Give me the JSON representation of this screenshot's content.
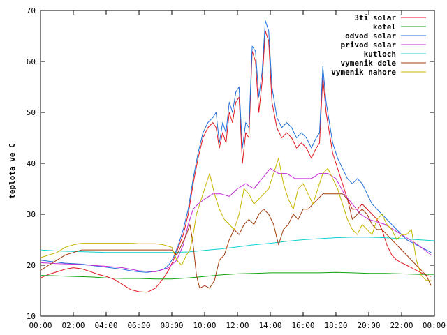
{
  "chart_data": {
    "type": "line",
    "ylabel": "teplota ve C",
    "x_ticks": [
      "00:00",
      "02:00",
      "04:00",
      "06:00",
      "08:00",
      "10:00",
      "12:00",
      "14:00",
      "16:00",
      "18:00",
      "20:00",
      "22:00",
      "00:00"
    ],
    "y_ticks": [
      10,
      20,
      30,
      40,
      50,
      60,
      70
    ],
    "xlim": [
      0,
      24
    ],
    "ylim": [
      10,
      70
    ],
    "legend_position": "top-right",
    "grid": false,
    "series": [
      {
        "name": "3ti solar",
        "color": "#e0151e",
        "x": [
          0,
          0.5,
          1,
          1.5,
          2,
          2.5,
          3,
          3.5,
          4,
          4.5,
          5,
          5.5,
          6,
          6.5,
          7,
          7.5,
          7.8,
          8.1,
          8.4,
          8.7,
          9,
          9.3,
          9.6,
          9.9,
          10.2,
          10.5,
          10.7,
          10.9,
          11.1,
          11.3,
          11.5,
          11.7,
          11.9,
          12.1,
          12.3,
          12.5,
          12.7,
          12.9,
          13.1,
          13.3,
          13.5,
          13.7,
          13.9,
          14.1,
          14.4,
          14.7,
          15,
          15.3,
          15.6,
          15.9,
          16.2,
          16.5,
          16.8,
          17.0,
          17.2,
          17.4,
          17.6,
          17.8,
          18.1,
          18.4,
          18.7,
          19,
          19.3,
          19.6,
          19.9,
          20.2,
          20.5,
          20.8,
          21.1,
          21.4,
          21.7,
          22,
          22.3,
          22.6,
          22.9,
          23.2,
          23.5,
          23.8
        ],
        "values": [
          17.5,
          18.2,
          18.7,
          19.2,
          19.5,
          19.3,
          18.8,
          18.2,
          17.8,
          17.2,
          16.2,
          15.2,
          14.8,
          14.7,
          15.5,
          17.5,
          19,
          21,
          23.5,
          26,
          30,
          36,
          41,
          45,
          47,
          48,
          47,
          43,
          46,
          44,
          50,
          48,
          52,
          53,
          40,
          46,
          45,
          62,
          60,
          50,
          56,
          66,
          64,
          52,
          47,
          45,
          46,
          45,
          43,
          44,
          43,
          41,
          43,
          44,
          57,
          50,
          46,
          42,
          39,
          36,
          33,
          31,
          31,
          32,
          31,
          30,
          29,
          27,
          24,
          22,
          21,
          20.5,
          20,
          19.5,
          19,
          18.5,
          18,
          17.8
        ]
      },
      {
        "name": "kotel",
        "color": "#0fa30f",
        "x": [
          0,
          1,
          2,
          3,
          4,
          5,
          6,
          7,
          8,
          9,
          10,
          11,
          12,
          13,
          14,
          15,
          16,
          17,
          18,
          19,
          20,
          21,
          22,
          23,
          24
        ],
        "values": [
          18,
          17.9,
          17.8,
          17.7,
          17.5,
          17.4,
          17.4,
          17.3,
          17.3,
          17.5,
          17.8,
          18.1,
          18.3,
          18.4,
          18.5,
          18.5,
          18.5,
          18.5,
          18.6,
          18.5,
          18.4,
          18.4,
          18.3,
          18.2,
          18.2
        ]
      },
      {
        "name": "odvod solar",
        "color": "#1f6fd8",
        "x": [
          0,
          0.5,
          1,
          1.5,
          2,
          2.5,
          3,
          3.5,
          4,
          4.5,
          5,
          5.5,
          6,
          6.5,
          7,
          7.5,
          7.8,
          8.1,
          8.4,
          8.7,
          9,
          9.3,
          9.6,
          9.9,
          10.2,
          10.5,
          10.7,
          10.9,
          11.1,
          11.3,
          11.5,
          11.7,
          11.9,
          12.1,
          12.3,
          12.5,
          12.7,
          12.9,
          13.1,
          13.3,
          13.5,
          13.7,
          13.9,
          14.1,
          14.4,
          14.7,
          15,
          15.3,
          15.6,
          15.9,
          16.2,
          16.5,
          16.8,
          17.0,
          17.2,
          17.4,
          17.6,
          17.8,
          18.1,
          18.4,
          18.7,
          19,
          19.3,
          19.6,
          19.9,
          20.2,
          20.5,
          20.8,
          21.1,
          21.4,
          21.7,
          22,
          22.3,
          22.6,
          22.9,
          23.2,
          23.5,
          23.8
        ],
        "values": [
          21,
          20.8,
          20.6,
          20.4,
          20.3,
          20.2,
          20,
          19.8,
          19.6,
          19.4,
          19.2,
          18.9,
          18.7,
          18.6,
          18.8,
          19.2,
          20,
          21.5,
          24,
          27,
          31,
          37,
          42,
          46,
          48,
          49,
          50,
          44,
          48,
          46,
          52,
          50,
          54,
          55,
          43,
          48,
          47,
          63,
          62,
          53,
          58,
          68,
          66,
          55,
          49,
          47,
          48,
          47,
          45,
          46,
          45,
          43,
          45,
          46,
          59,
          52,
          48,
          44,
          41,
          39,
          37,
          36,
          37,
          36,
          34,
          32,
          31,
          30,
          29,
          28,
          27,
          26,
          25,
          24.5,
          24,
          23.5,
          23,
          22.5
        ]
      },
      {
        "name": "privod solar",
        "color": "#c22bd4",
        "x": [
          0,
          1,
          2,
          3,
          4,
          5,
          6,
          7,
          7.8,
          8.3,
          8.7,
          9,
          9.3,
          9.6,
          10,
          10.5,
          11,
          11.5,
          12,
          12.5,
          13,
          13.5,
          14,
          14.5,
          15,
          15.5,
          16,
          16.5,
          17,
          17.5,
          18,
          18.5,
          19,
          19.5,
          20,
          20.5,
          21,
          21.5,
          22,
          22.5,
          23,
          23.8
        ],
        "values": [
          20.5,
          20.3,
          20.2,
          20,
          19.8,
          19.5,
          18.9,
          18.7,
          19.5,
          21,
          24,
          28,
          31,
          32,
          33,
          34,
          34,
          33.5,
          35,
          36,
          35,
          37,
          39,
          38,
          38,
          37,
          37,
          37,
          38,
          38,
          37,
          34,
          32,
          30,
          29,
          28.5,
          28,
          27,
          26,
          25,
          24,
          22
        ]
      },
      {
        "name": "kutloch",
        "color": "#10cfcf",
        "x": [
          0,
          1,
          2,
          3,
          4,
          5,
          6,
          7,
          8,
          9,
          10,
          11,
          12,
          13,
          14,
          15,
          16,
          17,
          18,
          19,
          20,
          21,
          22,
          23,
          24
        ],
        "values": [
          23,
          22.8,
          22.7,
          22.6,
          22.5,
          22.5,
          22.5,
          22.5,
          22.5,
          22.6,
          22.9,
          23.2,
          23.6,
          24,
          24.3,
          24.7,
          25,
          25.2,
          25.4,
          25.5,
          25.5,
          25.4,
          25.2,
          25,
          24.8
        ]
      },
      {
        "name": "vymenik dole",
        "color": "#a03a0a",
        "x": [
          0,
          0.5,
          1,
          1.5,
          2,
          2.5,
          3,
          3.5,
          4,
          4.5,
          5,
          5.5,
          6,
          6.5,
          7,
          7.5,
          8,
          8.3,
          8.6,
          8.9,
          9.1,
          9.3,
          9.5,
          9.7,
          10,
          10.3,
          10.6,
          10.9,
          11.2,
          11.5,
          11.8,
          12.1,
          12.4,
          12.7,
          13,
          13.3,
          13.6,
          13.9,
          14.2,
          14.5,
          14.8,
          15.1,
          15.4,
          15.7,
          16,
          16.3,
          16.6,
          16.9,
          17.2,
          17.5,
          17.8,
          18.1,
          18.4,
          18.7,
          19,
          19.3,
          19.6,
          19.9,
          20.2,
          20.5,
          20.8,
          21.1,
          21.4,
          21.7,
          22,
          22.3,
          22.6,
          22.9,
          23.2,
          23.5,
          23.8
        ],
        "values": [
          19,
          20,
          21,
          22,
          22.5,
          23,
          23,
          23,
          23,
          23,
          23,
          23,
          23,
          23,
          23,
          23,
          23,
          22,
          24,
          26,
          28,
          24,
          18,
          15.5,
          16,
          15.5,
          17,
          21,
          22,
          25,
          27,
          26,
          28,
          29,
          28,
          30,
          31,
          30,
          28,
          24,
          27,
          28,
          30,
          29,
          31,
          31,
          32,
          33,
          34,
          34,
          34,
          34,
          34,
          33,
          29,
          30,
          31,
          30,
          28,
          27,
          27,
          26,
          25,
          24,
          23,
          22,
          21,
          20,
          19,
          18,
          16
        ]
      },
      {
        "name": "vymenik nahore",
        "color": "#c8b400",
        "x": [
          0,
          0.5,
          1,
          1.5,
          2,
          2.5,
          3,
          3.5,
          4,
          4.5,
          5,
          5.5,
          6,
          6.5,
          7,
          7.5,
          8,
          8.3,
          8.6,
          8.9,
          9.1,
          9.3,
          9.5,
          9.7,
          10,
          10.3,
          10.6,
          10.9,
          11.2,
          11.5,
          11.8,
          12.1,
          12.4,
          12.7,
          13,
          13.3,
          13.6,
          13.9,
          14.2,
          14.5,
          14.8,
          15.1,
          15.4,
          15.7,
          16,
          16.3,
          16.6,
          16.9,
          17.2,
          17.5,
          17.8,
          18.1,
          18.4,
          18.7,
          19,
          19.3,
          19.6,
          19.9,
          20.2,
          20.5,
          20.8,
          21.1,
          21.4,
          21.7,
          22,
          22.3,
          22.6,
          22.9,
          23.2,
          23.5,
          23.8
        ],
        "values": [
          21.5,
          22,
          22.5,
          23.5,
          24,
          24.3,
          24.3,
          24.3,
          24.3,
          24.3,
          24.3,
          24.3,
          24.2,
          24.2,
          24.2,
          24,
          23.5,
          21,
          20,
          22,
          23,
          26,
          30,
          32,
          35,
          38,
          34,
          31,
          29,
          28,
          27,
          30,
          35,
          34,
          32,
          33,
          34,
          35,
          38,
          41,
          36,
          33,
          31,
          35,
          36,
          34,
          32,
          35,
          38,
          39,
          37,
          35,
          32,
          29,
          27,
          26,
          28,
          27,
          26,
          29,
          30,
          28,
          27,
          25,
          26,
          26,
          27,
          21,
          18,
          17,
          17
        ]
      }
    ]
  }
}
